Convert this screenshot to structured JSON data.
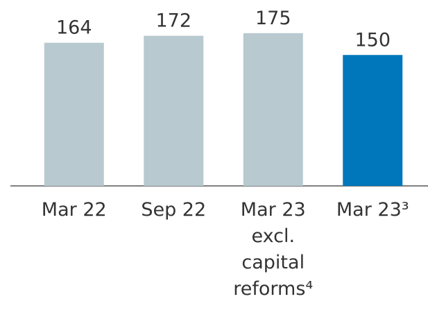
{
  "chart_data": {
    "type": "bar",
    "categories": [
      "Mar 22",
      "Sep 22",
      "Mar 23 excl. capital reforms⁴",
      "Mar 23³"
    ],
    "values": [
      164,
      172,
      175,
      150
    ],
    "colors": [
      "#b8c9d0",
      "#b8c9d0",
      "#b8c9d0",
      "#0077bb"
    ],
    "ylim": [
      0,
      213
    ]
  }
}
